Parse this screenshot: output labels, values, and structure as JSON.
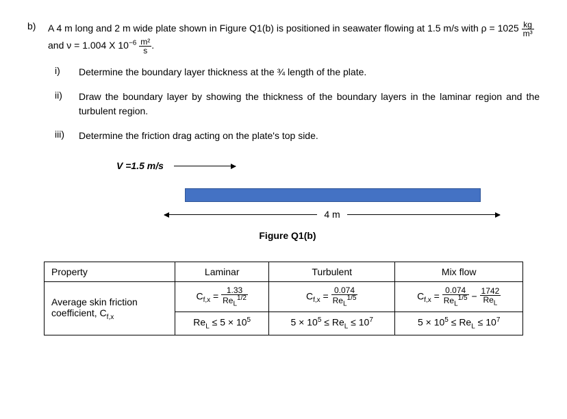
{
  "question": {
    "label": "b)",
    "text_pre": "A 4 m long and 2 m wide plate shown in Figure Q1(b) is positioned in seawater flowing at 1.5 m/s with  ",
    "rho_eq_pre": "ρ = 1025 ",
    "rho_unit_num": "kg",
    "rho_unit_den": "m³",
    "and_text": " and ν = 1.004 X 10",
    "exp": "−6",
    "nu_unit_num": "m²",
    "nu_unit_den": "s",
    "period": "."
  },
  "subs": {
    "i_label": "i)",
    "i_text": "Determine the boundary layer thickness at the ¾ length of the plate.",
    "ii_label": "ii)",
    "ii_text": "Draw the boundary layer by showing the thickness of the boundary layers in the laminar region and the turbulent region.",
    "iii_label": "iii)",
    "iii_text": "Determine the friction drag acting on the plate's top side."
  },
  "figure": {
    "velocity": "V =1.5 m/s",
    "dim": "4 m",
    "caption": "Figure Q1(b)",
    "plate_color": "#4472c4"
  },
  "table": {
    "h_property": "Property",
    "h_laminar": "Laminar",
    "h_turbulent": "Turbulent",
    "h_mix": "Mix flow",
    "row_label_1": "Average skin friction",
    "row_label_2": "coefficient, C",
    "row_label_sub": "f,x",
    "lam_num": "1.33",
    "lam_den_pre": "Re",
    "lam_den_sub": "L",
    "lam_den_exp": "1/2",
    "cfx_pre": "C",
    "cfx_sub": "f,x",
    "eq": " = ",
    "turb_num": "0.074",
    "turb_den_exp": "1/5",
    "mix_num1": "0.074",
    "mix_num2": "1742",
    "mix_den2": "Re",
    "mix_den2_sub": "L",
    "minus": " − ",
    "lam_cond": "Re",
    "lam_cond_sub": "L",
    "lam_cond_post": " ≤ 5 × 10",
    "lam_cond_exp": "5",
    "turb_cond_pre": "5 × 10",
    "turb_cond_exp1": "5",
    "turb_cond_mid": " ≤ Re",
    "turb_cond_sub": "L",
    "turb_cond_mid2": " ≤ 10",
    "turb_cond_exp2": "7",
    "mix_cond_pre": "5 × 10",
    "mix_cond_exp1": "5",
    "mix_cond_mid": " ≤ Re",
    "mix_cond_sub": "L",
    "mix_cond_mid2": " ≤ 10",
    "mix_cond_exp2": "7"
  }
}
